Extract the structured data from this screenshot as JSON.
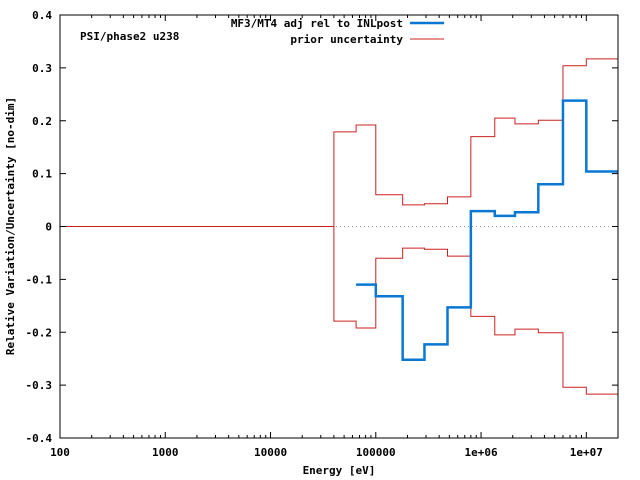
{
  "chart_data": {
    "type": "line",
    "xlabel": "Energy [eV]",
    "ylabel": "Relative Variation/Uncertainty [no-dim]",
    "xscale": "log",
    "xlim": [
      100,
      20000000
    ],
    "ylim": [
      -0.4,
      0.4
    ],
    "grid": false,
    "legend_position": "top-center",
    "annotation": "PSI/phase2 u238",
    "x_ticks": [
      100,
      1000,
      10000,
      100000,
      1000000,
      10000000
    ],
    "x_tick_labels": [
      "100",
      "1000",
      "10000",
      "100000",
      "1e+06",
      "1e+07"
    ],
    "y_ticks": [
      -0.4,
      -0.3,
      -0.2,
      -0.1,
      0,
      0.1,
      0.2,
      0.3,
      0.4
    ],
    "y_tick_labels": [
      "-0.4",
      "-0.3",
      "-0.2",
      "-0.1",
      "0",
      "0.1",
      "0.2",
      "0.3",
      "0.4"
    ],
    "zero_line": {
      "y": 0,
      "color": "#a0a0a0",
      "style": "dotted"
    },
    "series": [
      {
        "name": "MF3/MT4 adj rel to INLpost",
        "color": "#0a78d2",
        "style": "step",
        "bin_edges": [
          65000,
          100000,
          180000,
          290000,
          480000,
          800000,
          1350000,
          2100000,
          3500000,
          6000000,
          10000000,
          20000000
        ],
        "values": [
          -0.11,
          -0.132,
          -0.252,
          -0.223,
          -0.153,
          0.029,
          0.02,
          0.027,
          0.08,
          0.238,
          0.104
        ]
      },
      {
        "name": "prior uncertainty",
        "color": "#cc2020",
        "style": "step-band",
        "bin_edges": [
          100,
          40000,
          65000,
          100000,
          180000,
          290000,
          480000,
          800000,
          1350000,
          2100000,
          3500000,
          6000000,
          10000000,
          20000000
        ],
        "values": [
          0,
          0.179,
          0.192,
          0.06,
          0.041,
          0.043,
          0.056,
          0.17,
          0.205,
          0.194,
          0.201,
          0.304,
          0.317
        ]
      }
    ]
  }
}
